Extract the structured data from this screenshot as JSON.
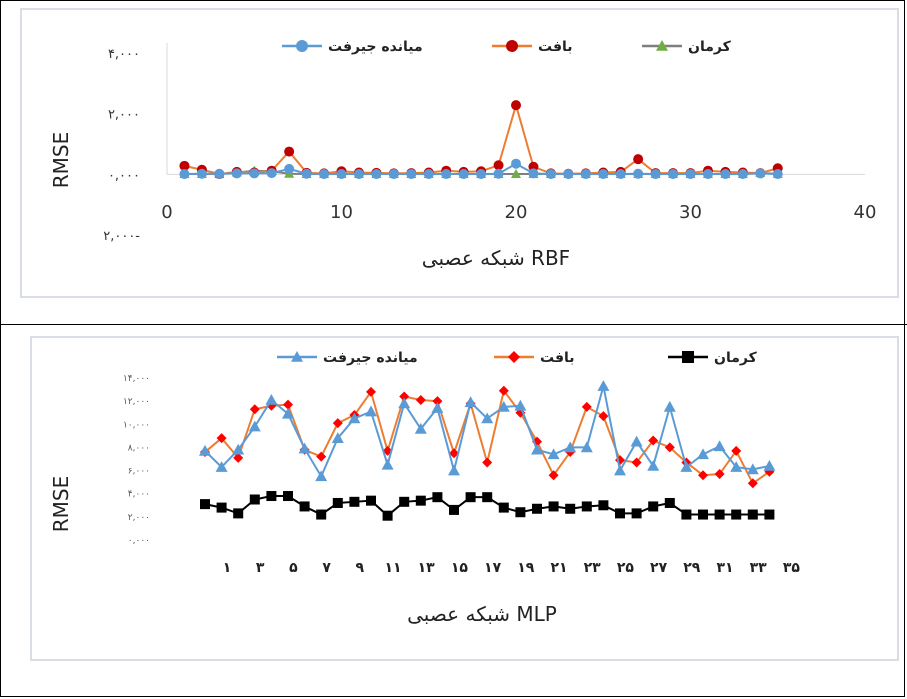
{
  "chart_data": [
    {
      "type": "line",
      "xlabel": "شبکه عصبی RBF",
      "ylabel": "RMSE",
      "xlim": [
        0,
        40
      ],
      "ylim": [
        -2000,
        4000
      ],
      "x_ticks": [
        0,
        10,
        20,
        30,
        40
      ],
      "x_tick_labels": [
        "0",
        "10",
        "20",
        "30",
        "40"
      ],
      "y_ticks": [
        4000,
        2000,
        0,
        -2000
      ],
      "y_tick_labels": [
        "۴,۰۰۰",
        "۲,۰۰۰",
        "۰,۰۰۰",
        "۲,۰۰۰-"
      ],
      "grid": false,
      "legend_position": "top",
      "x": [
        1,
        2,
        3,
        4,
        5,
        6,
        7,
        8,
        9,
        10,
        11,
        12,
        13,
        14,
        15,
        16,
        17,
        18,
        19,
        20,
        21,
        22,
        23,
        24,
        25,
        26,
        27,
        28,
        29,
        30,
        31,
        32,
        33,
        34,
        35
      ],
      "series": [
        {
          "name": "کرمان",
          "color": "#7f7f7f",
          "marker": "triangle",
          "marker_color": "#70ad47",
          "values": [
            10,
            10,
            10,
            60,
            120,
            100,
            20,
            10,
            10,
            10,
            10,
            10,
            10,
            10,
            10,
            10,
            10,
            10,
            10,
            10,
            10,
            10,
            10,
            10,
            10,
            10,
            10,
            10,
            10,
            10,
            10,
            10,
            10,
            50,
            10
          ]
        },
        {
          "name": "بافت",
          "color": "#ed7d31",
          "marker": "circle",
          "marker_color": "#c00000",
          "values": [
            280,
            150,
            10,
            80,
            60,
            120,
            750,
            50,
            30,
            100,
            60,
            50,
            30,
            40,
            60,
            120,
            80,
            100,
            300,
            2280,
            250,
            30,
            20,
            30,
            60,
            80,
            500,
            40,
            40,
            40,
            120,
            80,
            60,
            40,
            200
          ]
        },
        {
          "name": "میانده جیرفت",
          "color": "#5b9bd5",
          "marker": "circle",
          "marker_color": "#5b9bd5",
          "values": [
            10,
            20,
            20,
            30,
            30,
            40,
            180,
            20,
            10,
            10,
            10,
            10,
            10,
            10,
            10,
            10,
            10,
            10,
            20,
            350,
            30,
            10,
            10,
            10,
            10,
            10,
            20,
            10,
            10,
            10,
            10,
            10,
            10,
            30,
            10
          ]
        }
      ]
    },
    {
      "type": "line",
      "xlabel": "شبکه عصبی MLP",
      "ylabel": "RMSE",
      "ylim": [
        0,
        14000
      ],
      "y_ticks": [
        14000,
        12000,
        10000,
        8000,
        6000,
        4000,
        2000,
        0
      ],
      "y_tick_labels": [
        "۱۴,۰۰۰",
        "۱۲,۰۰۰",
        "۱۰,۰۰۰",
        "۸,۰۰۰",
        "۶,۰۰۰",
        "۴,۰۰۰",
        "۲,۰۰۰",
        "۰,۰۰۰"
      ],
      "x_tick_labels": [
        "۱",
        "۳",
        "۵",
        "۷",
        "۹",
        "۱۱",
        "۱۳",
        "۱۵",
        "۱۷",
        "۱۹",
        "۲۱",
        "۲۳",
        "۲۵",
        "۲۷",
        "۲۹",
        "۳۱",
        "۳۳",
        "۳۵"
      ],
      "grid": false,
      "legend_position": "top",
      "x": [
        1,
        2,
        3,
        4,
        5,
        6,
        7,
        8,
        9,
        10,
        11,
        12,
        13,
        14,
        15,
        16,
        17,
        18,
        19,
        20,
        21,
        22,
        23,
        24,
        25,
        26,
        27,
        28,
        29,
        30,
        31,
        32,
        33,
        34,
        35
      ],
      "series": [
        {
          "name": "کرمان",
          "color": "#000000",
          "marker": "square",
          "marker_color": "#000000",
          "values": [
            3100,
            2800,
            2300,
            3500,
            3800,
            3800,
            2900,
            2200,
            3200,
            3300,
            3400,
            2100,
            3300,
            3400,
            3700,
            2600,
            3700,
            3700,
            2800,
            2400,
            2700,
            2900,
            2700,
            2900,
            3000,
            2300,
            2300,
            2900,
            3200,
            2200,
            2200,
            2200,
            2200,
            2200,
            2200
          ]
        },
        {
          "name": "بافت",
          "color": "#ed7d31",
          "marker": "diamond",
          "marker_color": "#ff0000",
          "values": [
            7600,
            8800,
            7100,
            11300,
            11600,
            11700,
            7800,
            7200,
            10100,
            10800,
            12800,
            7700,
            12400,
            12100,
            12000,
            7500,
            11800,
            6700,
            12900,
            11000,
            8500,
            5600,
            7600,
            11500,
            10700,
            6900,
            6700,
            8600,
            8000,
            6700,
            5600,
            5700,
            7700,
            4900,
            5900
          ]
        },
        {
          "name": "میانده جیرفت",
          "color": "#5b9bd5",
          "marker": "triangle",
          "marker_color": "#5b9bd5",
          "values": [
            7700,
            6300,
            7800,
            9800,
            12100,
            10900,
            7900,
            5500,
            8800,
            10500,
            11100,
            6500,
            11800,
            9600,
            11400,
            6000,
            11900,
            10500,
            11500,
            11600,
            7800,
            7400,
            8000,
            8000,
            13300,
            6000,
            8500,
            6400,
            11500,
            6300,
            7400,
            8100,
            6300,
            6100,
            6400
          ]
        }
      ]
    }
  ]
}
